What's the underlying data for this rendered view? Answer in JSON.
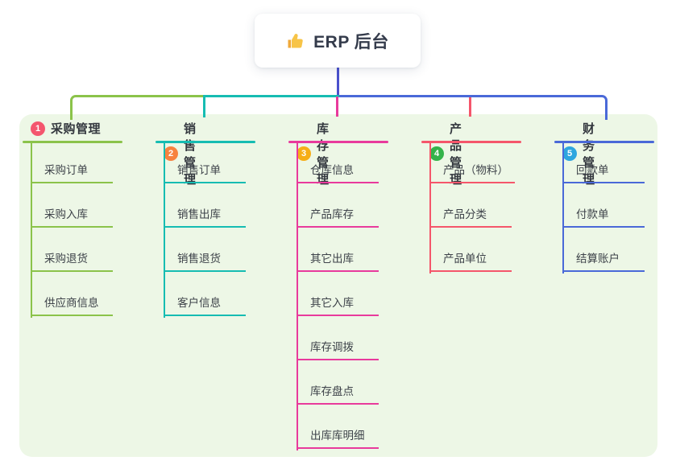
{
  "root": {
    "label": "ERP 后台",
    "icon": "thumbs-up-icon",
    "connector_color": "#4a51cd"
  },
  "palette": {
    "canvas_bg": "#ffffff",
    "panel_bg": "#edf7e6",
    "root_text": "#343b4b",
    "header_text": "#33373e",
    "item_text": "#3d4249"
  },
  "branches": [
    {
      "order": "1",
      "label": "采购管理",
      "line_color": "#8bc34a",
      "badge_color": "#f4566e",
      "items": [
        "采购订单",
        "采购入库",
        "采购退货",
        "供应商信息"
      ]
    },
    {
      "order": "2",
      "label": "销售管理",
      "line_color": "#16bcb2",
      "badge_color": "#f7823f",
      "items": [
        "销售订单",
        "销售出库",
        "销售退货",
        "客户信息"
      ]
    },
    {
      "order": "3",
      "label": "库存管理",
      "line_color": "#e83a9c",
      "badge_color": "#f6ae17",
      "items": [
        "仓库信息",
        "产品库存",
        "其它出库",
        "其它入库",
        "库存调拨",
        "库存盘点",
        "出库库明细"
      ]
    },
    {
      "order": "4",
      "label": "产品管理",
      "line_color": "#f5566b",
      "badge_color": "#34b34a",
      "items": [
        "产品（物料）",
        "产品分类",
        "产品单位"
      ]
    },
    {
      "order": "5",
      "label": "财务管理",
      "line_color": "#4a69d8",
      "badge_color": "#2ea6df",
      "items": [
        "回款单",
        "付款单",
        "结算账户"
      ]
    }
  ]
}
